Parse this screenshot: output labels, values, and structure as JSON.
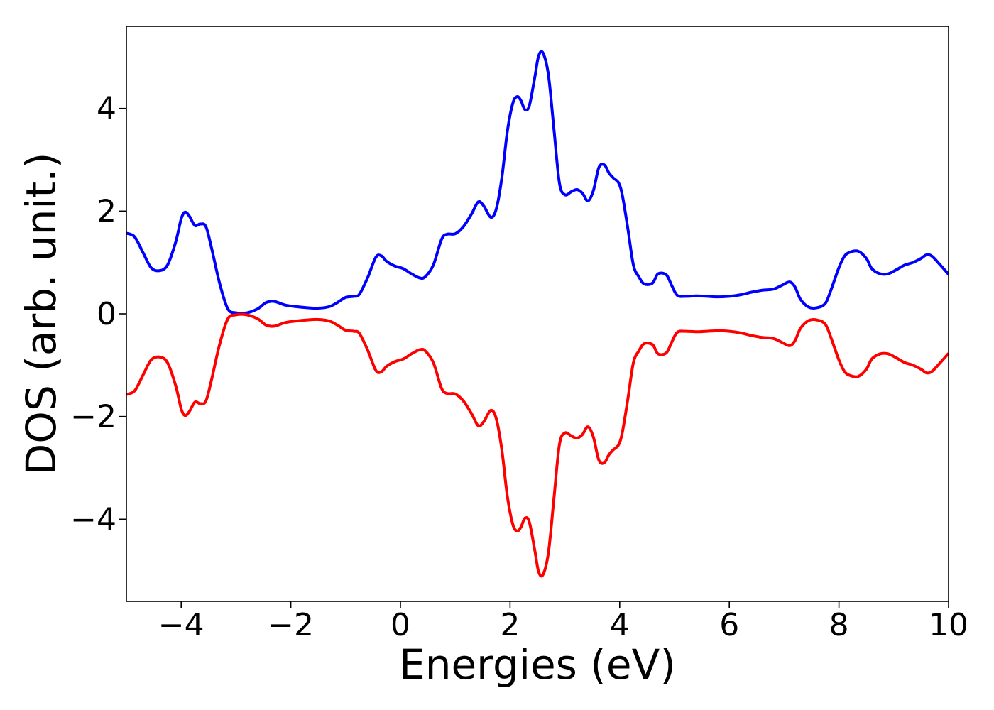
{
  "chart_data": {
    "type": "line",
    "title": "",
    "xlabel": "Energies (eV)",
    "ylabel": "DOS (arb. unit.)",
    "xlim": [
      -5,
      10
    ],
    "ylim": [
      -5.6,
      5.6
    ],
    "xticks": [
      -4,
      -2,
      0,
      2,
      4,
      6,
      8,
      10
    ],
    "yticks": [
      -4,
      -2,
      0,
      2,
      4
    ],
    "xtick_labels": [
      "−4",
      "−2",
      "0",
      "2",
      "4",
      "6",
      "8",
      "10"
    ],
    "ytick_labels": [
      "−4",
      "−2",
      "0",
      "2",
      "4"
    ],
    "grid": false,
    "legend": "none",
    "series": [
      {
        "color": "#0000ff",
        "x": [
          -5.0,
          -4.85,
          -4.7,
          -4.55,
          -4.4,
          -4.25,
          -4.1,
          -4.0,
          -3.93,
          -3.85,
          -3.75,
          -3.65,
          -3.55,
          -3.45,
          -3.3,
          -3.15,
          -3.0,
          -2.8,
          -2.6,
          -2.45,
          -2.3,
          -2.1,
          -1.9,
          -1.7,
          -1.5,
          -1.3,
          -1.15,
          -1.0,
          -0.85,
          -0.75,
          -0.6,
          -0.45,
          -0.35,
          -0.25,
          -0.1,
          0.05,
          0.2,
          0.35,
          0.45,
          0.6,
          0.75,
          0.85,
          1.0,
          1.15,
          1.3,
          1.42,
          1.52,
          1.65,
          1.75,
          1.85,
          1.95,
          2.05,
          2.13,
          2.2,
          2.27,
          2.35,
          2.45,
          2.52,
          2.6,
          2.7,
          2.8,
          2.9,
          3.0,
          3.12,
          3.22,
          3.32,
          3.42,
          3.52,
          3.62,
          3.72,
          3.8,
          3.88,
          3.98,
          4.05,
          4.15,
          4.25,
          4.35,
          4.45,
          4.6,
          4.7,
          4.85,
          4.95,
          5.05,
          5.2,
          5.4,
          5.6,
          5.8,
          6.0,
          6.2,
          6.4,
          6.6,
          6.8,
          6.95,
          7.1,
          7.2,
          7.3,
          7.45,
          7.6,
          7.75,
          7.85,
          8.0,
          8.1,
          8.2,
          8.35,
          8.5,
          8.6,
          8.75,
          8.9,
          9.05,
          9.2,
          9.35,
          9.5,
          9.6,
          9.7,
          9.85,
          10.0
        ],
        "y": [
          1.57,
          1.5,
          1.2,
          0.9,
          0.84,
          0.95,
          1.4,
          1.85,
          1.98,
          1.9,
          1.72,
          1.75,
          1.7,
          1.3,
          0.6,
          0.1,
          0.02,
          0.02,
          0.1,
          0.22,
          0.24,
          0.17,
          0.14,
          0.12,
          0.11,
          0.14,
          0.22,
          0.32,
          0.34,
          0.38,
          0.7,
          1.1,
          1.13,
          1.02,
          0.93,
          0.88,
          0.78,
          0.7,
          0.72,
          0.95,
          1.45,
          1.55,
          1.56,
          1.7,
          1.95,
          2.18,
          2.1,
          1.88,
          2.05,
          2.65,
          3.55,
          4.1,
          4.23,
          4.15,
          3.98,
          4.05,
          4.6,
          5.02,
          5.08,
          4.65,
          3.6,
          2.55,
          2.32,
          2.38,
          2.42,
          2.35,
          2.2,
          2.4,
          2.85,
          2.9,
          2.75,
          2.65,
          2.55,
          2.3,
          1.65,
          0.95,
          0.72,
          0.58,
          0.6,
          0.78,
          0.76,
          0.55,
          0.36,
          0.34,
          0.35,
          0.34,
          0.33,
          0.34,
          0.37,
          0.42,
          0.46,
          0.48,
          0.55,
          0.62,
          0.52,
          0.28,
          0.13,
          0.12,
          0.2,
          0.45,
          0.9,
          1.12,
          1.2,
          1.22,
          1.08,
          0.88,
          0.78,
          0.78,
          0.86,
          0.95,
          1.0,
          1.08,
          1.15,
          1.12,
          0.95,
          0.77
        ]
      },
      {
        "color": "#ff0000",
        "x": [
          -5.0,
          -4.85,
          -4.7,
          -4.55,
          -4.4,
          -4.25,
          -4.1,
          -4.0,
          -3.93,
          -3.85,
          -3.75,
          -3.65,
          -3.55,
          -3.45,
          -3.3,
          -3.15,
          -3.0,
          -2.8,
          -2.6,
          -2.45,
          -2.3,
          -2.1,
          -1.9,
          -1.7,
          -1.5,
          -1.3,
          -1.15,
          -1.0,
          -0.85,
          -0.75,
          -0.6,
          -0.45,
          -0.35,
          -0.25,
          -0.1,
          0.05,
          0.2,
          0.35,
          0.45,
          0.6,
          0.75,
          0.85,
          1.0,
          1.15,
          1.3,
          1.42,
          1.52,
          1.65,
          1.75,
          1.85,
          1.95,
          2.05,
          2.13,
          2.2,
          2.27,
          2.35,
          2.45,
          2.52,
          2.6,
          2.7,
          2.8,
          2.9,
          3.0,
          3.12,
          3.22,
          3.32,
          3.42,
          3.52,
          3.62,
          3.72,
          3.8,
          3.88,
          3.98,
          4.05,
          4.15,
          4.25,
          4.35,
          4.45,
          4.6,
          4.7,
          4.85,
          4.95,
          5.05,
          5.2,
          5.4,
          5.6,
          5.8,
          6.0,
          6.2,
          6.4,
          6.6,
          6.8,
          6.95,
          7.1,
          7.2,
          7.3,
          7.45,
          7.6,
          7.75,
          7.85,
          8.0,
          8.1,
          8.2,
          8.35,
          8.5,
          8.6,
          8.75,
          8.9,
          9.05,
          9.2,
          9.35,
          9.5,
          9.6,
          9.7,
          9.85,
          10.0
        ],
        "y": [
          -1.57,
          -1.5,
          -1.2,
          -0.9,
          -0.84,
          -0.95,
          -1.4,
          -1.85,
          -1.98,
          -1.9,
          -1.72,
          -1.75,
          -1.7,
          -1.3,
          -0.6,
          -0.1,
          -0.02,
          -0.02,
          -0.1,
          -0.22,
          -0.24,
          -0.17,
          -0.14,
          -0.12,
          -0.11,
          -0.14,
          -0.22,
          -0.32,
          -0.34,
          -0.38,
          -0.7,
          -1.1,
          -1.13,
          -1.02,
          -0.93,
          -0.88,
          -0.78,
          -0.7,
          -0.72,
          -0.95,
          -1.45,
          -1.55,
          -1.56,
          -1.7,
          -1.95,
          -2.18,
          -2.1,
          -1.88,
          -2.05,
          -2.65,
          -3.55,
          -4.1,
          -4.23,
          -4.15,
          -3.98,
          -4.05,
          -4.6,
          -5.02,
          -5.08,
          -4.65,
          -3.6,
          -2.55,
          -2.32,
          -2.38,
          -2.42,
          -2.35,
          -2.2,
          -2.4,
          -2.85,
          -2.9,
          -2.75,
          -2.65,
          -2.55,
          -2.3,
          -1.65,
          -0.95,
          -0.72,
          -0.58,
          -0.6,
          -0.78,
          -0.76,
          -0.55,
          -0.36,
          -0.34,
          -0.35,
          -0.34,
          -0.33,
          -0.34,
          -0.37,
          -0.42,
          -0.46,
          -0.48,
          -0.55,
          -0.62,
          -0.52,
          -0.28,
          -0.13,
          -0.12,
          -0.2,
          -0.45,
          -0.9,
          -1.12,
          -1.2,
          -1.22,
          -1.08,
          -0.88,
          -0.78,
          -0.78,
          -0.86,
          -0.95,
          -1.0,
          -1.08,
          -1.15,
          -1.12,
          -0.95,
          -0.77
        ]
      }
    ]
  }
}
